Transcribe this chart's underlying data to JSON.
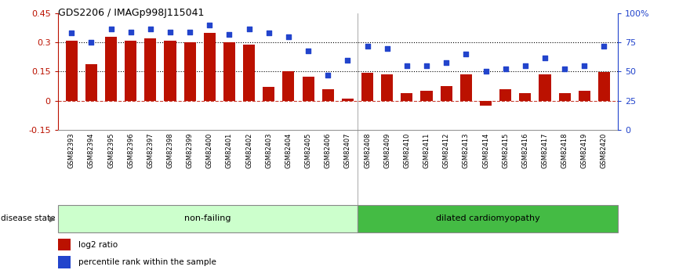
{
  "title": "GDS2206 / IMAGp998J115041",
  "samples": [
    "GSM82393",
    "GSM82394",
    "GSM82395",
    "GSM82396",
    "GSM82397",
    "GSM82398",
    "GSM82399",
    "GSM82400",
    "GSM82401",
    "GSM82402",
    "GSM82403",
    "GSM82404",
    "GSM82405",
    "GSM82406",
    "GSM82407",
    "GSM82408",
    "GSM82409",
    "GSM82410",
    "GSM82411",
    "GSM82412",
    "GSM82413",
    "GSM82414",
    "GSM82415",
    "GSM82416",
    "GSM82417",
    "GSM82418",
    "GSM82419",
    "GSM82420"
  ],
  "log2_ratio": [
    0.31,
    0.19,
    0.33,
    0.31,
    0.32,
    0.31,
    0.3,
    0.35,
    0.3,
    0.29,
    0.07,
    0.15,
    0.125,
    0.06,
    0.01,
    0.145,
    0.135,
    0.04,
    0.05,
    0.075,
    0.135,
    -0.025,
    0.06,
    0.04,
    0.135,
    0.04,
    0.05,
    0.148
  ],
  "percentile": [
    83,
    75,
    87,
    84,
    87,
    84,
    84,
    90,
    82,
    87,
    83,
    80,
    68,
    47,
    60,
    72,
    70,
    55,
    55,
    58,
    65,
    50,
    52,
    55,
    62,
    52,
    55,
    72
  ],
  "non_failing_count": 15,
  "bar_color": "#BB1100",
  "dot_color": "#2244CC",
  "left_ylim": [
    -0.15,
    0.45
  ],
  "right_ylim": [
    0,
    100
  ],
  "left_yticks": [
    -0.15,
    0.0,
    0.15,
    0.3,
    0.45
  ],
  "right_yticks": [
    0,
    25,
    50,
    75,
    100
  ],
  "right_yticklabels": [
    "0",
    "25",
    "50",
    "75",
    "100%"
  ],
  "hline1": 0.3,
  "hline2": 0.15,
  "zero_line": 0.0,
  "nf_label": "non-failing",
  "dc_label": "dilated cardiomyopathy",
  "disease_state_label": "disease state",
  "legend_bar": "log2 ratio",
  "legend_dot": "percentile rank within the sample",
  "nf_color": "#CCFFCC",
  "dc_color": "#44BB44",
  "bg_color": "#FFFFFF"
}
